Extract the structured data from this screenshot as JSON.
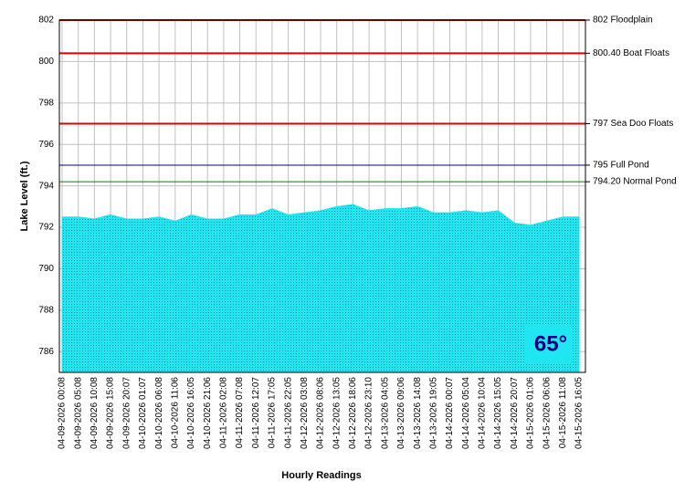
{
  "chart_data": {
    "type": "area",
    "y_label": "Lake Level (ft.)",
    "x_label": "Hourly Readings",
    "annotation": "65°",
    "categories": [
      "04-09-2026 00:08",
      "04-09-2026 05:08",
      "04-09-2026 10:08",
      "04-09-2026 15:08",
      "04-09-2026 20:07",
      "04-10-2026 01:07",
      "04-10-2026 06:08",
      "04-10-2026 11:06",
      "04-10-2026 16:05",
      "04-10-2026 21:06",
      "04-11-2026 02:08",
      "04-11-2026 07:08",
      "04-11-2026 12:07",
      "04-11-2026 17:05",
      "04-11-2026 22:05",
      "04-12-2026 03:08",
      "04-12-2026 08:06",
      "04-12-2026 13:05",
      "04-12-2026 18:06",
      "04-12-2026 23:10",
      "04-13-2026 04:05",
      "04-13-2026 09:06",
      "04-13-2026 14:08",
      "04-13-2026 19:05",
      "04-14-2026 00:07",
      "04-14-2026 05:04",
      "04-14-2026 10:04",
      "04-14-2026 15:05",
      "04-14-2026 20:07",
      "04-15-2026 01:06",
      "04-15-2026 06:06",
      "04-15-2026 11:08",
      "04-15-2026 16:05"
    ],
    "values": [
      792.5,
      792.5,
      792.4,
      792.6,
      792.4,
      792.4,
      792.5,
      792.3,
      792.6,
      792.4,
      792.4,
      792.6,
      792.6,
      792.9,
      792.6,
      792.7,
      792.8,
      793.0,
      793.1,
      792.8,
      792.9,
      792.9,
      793.0,
      792.7,
      792.7,
      792.8,
      792.7,
      792.8,
      792.2,
      792.1,
      792.3,
      792.5,
      792.5
    ],
    "color": "#1fe6f0",
    "ylim": [
      785,
      802
    ],
    "yticks": [
      786,
      788,
      790,
      792,
      794,
      796,
      798,
      800,
      802
    ],
    "grid": true,
    "reference_lines": [
      {
        "value": 802,
        "label": "802 Floodplain",
        "color": "#e00000"
      },
      {
        "value": 800.4,
        "label": "800.40 Boat Floats",
        "color": "#e00000"
      },
      {
        "value": 797,
        "label": "797 Sea Doo Floats",
        "color": "#e00000"
      },
      {
        "value": 795,
        "label": "795 Full Pond",
        "color": "#000080"
      },
      {
        "value": 794.2,
        "label": "794.20 Normal Pond",
        "color": "#008000"
      }
    ]
  }
}
